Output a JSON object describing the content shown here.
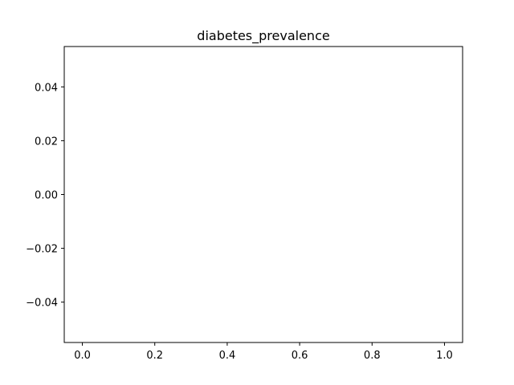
{
  "chart_data": {
    "type": "line",
    "title": "diabetes_prevalence",
    "xlabel": "",
    "ylabel": "",
    "series": [],
    "xlim": [
      -0.05,
      1.05
    ],
    "ylim": [
      -0.055,
      0.055
    ],
    "x_ticks": [
      {
        "value": 0.0,
        "label": "0.0"
      },
      {
        "value": 0.2,
        "label": "0.2"
      },
      {
        "value": 0.4,
        "label": "0.4"
      },
      {
        "value": 0.6,
        "label": "0.6"
      },
      {
        "value": 0.8,
        "label": "0.8"
      },
      {
        "value": 1.0,
        "label": "1.0"
      }
    ],
    "y_ticks": [
      {
        "value": 0.04,
        "label": "0.04"
      },
      {
        "value": 0.02,
        "label": "0.02"
      },
      {
        "value": 0.0,
        "label": "0.00"
      },
      {
        "value": -0.02,
        "label": "−0.02"
      },
      {
        "value": -0.04,
        "label": "−0.04"
      }
    ],
    "grid": false,
    "legend": "none"
  }
}
